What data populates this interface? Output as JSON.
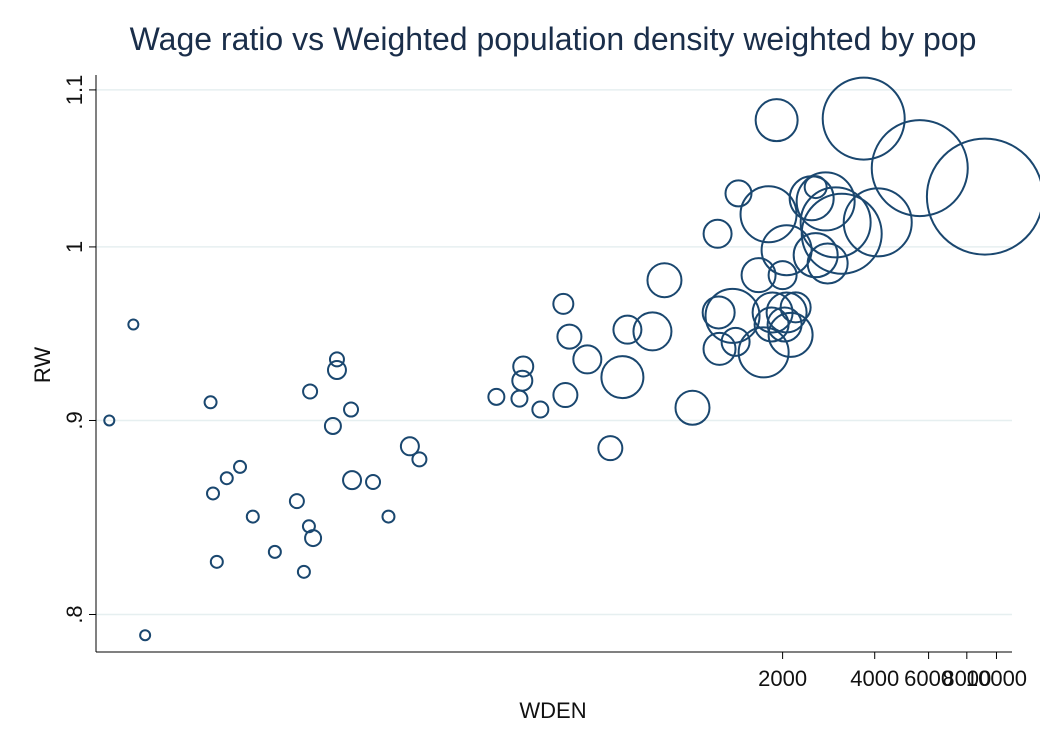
{
  "chart_data": {
    "type": "scatter",
    "title": "Wage ratio vs Weighted population density weighted by pop",
    "x_label": "WDEN",
    "y_label": "RW",
    "x_log": true,
    "y_log": true,
    "grid": true,
    "color": "#1a476f",
    "xlim": [
      11.4,
      11240
    ],
    "ylim": [
      0.782,
      1.11
    ],
    "xticks": [
      2000,
      4000,
      6000,
      8000,
      10000
    ],
    "yticks": [
      {
        "value": 0.8,
        "label": ".8"
      },
      {
        "value": 0.9,
        "label": ".9"
      },
      1,
      1.1
    ],
    "x": [
      12.6,
      15.1,
      16.5,
      27.0,
      27.5,
      28.3,
      30.5,
      33.7,
      37.1,
      43.8,
      51.7,
      54.5,
      56.6,
      57.1,
      58.4,
      67.8,
      69.9,
      69.9,
      77.7,
      78.3,
      91.7,
      103,
      121,
      130,
      232,
      276,
      282,
      284,
      323,
      384,
      390,
      402,
      460,
      547,
      599,
      622,
      751,
      822,
      1015,
      1226,
      1244,
      1236,
      1372,
      1404,
      1435,
      1734,
      1799,
      1912,
      1841,
      1855,
      1669,
      2000,
      2061,
      2030,
      2124,
      2206,
      2061,
      2565,
      2489,
      2765,
      2565,
      2807,
      2981,
      3120,
      3682,
      4092,
      5614,
      9166
    ],
    "y": [
      0.9,
      0.954,
      0.79,
      0.91,
      0.861,
      0.826,
      0.869,
      0.875,
      0.849,
      0.831,
      0.857,
      0.821,
      0.844,
      0.916,
      0.838,
      0.897,
      0.934,
      0.928,
      0.906,
      0.868,
      0.867,
      0.849,
      0.886,
      0.879,
      0.913,
      0.912,
      0.922,
      0.93,
      0.906,
      0.966,
      0.914,
      0.947,
      0.934,
      0.885,
      0.924,
      0.951,
      0.95,
      0.98,
      0.907,
      1.008,
      0.94,
      0.961,
      0.959,
      0.944,
      1.033,
      0.938,
      1.02,
      1.08,
      0.954,
      0.961,
      0.983,
      0.983,
      0.961,
      0.954,
      0.948,
      0.964,
      0.998,
      1.037,
      1.03,
      1.028,
      0.995,
      0.99,
      1.015,
      1.008,
      1.081,
      1.015,
      1.049,
      1.031
    ],
    "sizes": [
      25,
      25,
      25,
      36,
      36,
      36,
      36,
      36,
      36,
      36,
      49,
      36,
      36,
      49,
      64,
      64,
      49,
      81,
      49,
      81,
      49,
      36,
      81,
      49,
      64,
      64,
      100,
      100,
      64,
      100,
      144,
      144,
      196,
      144,
      441,
      196,
      361,
      289,
      289,
      196,
      256,
      256,
      729,
      196,
      169,
      625,
      784,
      441,
      289,
      400,
      289,
      196,
      400,
      289,
      484,
      225,
      625,
      121,
      484,
      841,
      484,
      400,
      1225,
      1600,
      1681,
      1156,
      2304,
      3364
    ]
  }
}
